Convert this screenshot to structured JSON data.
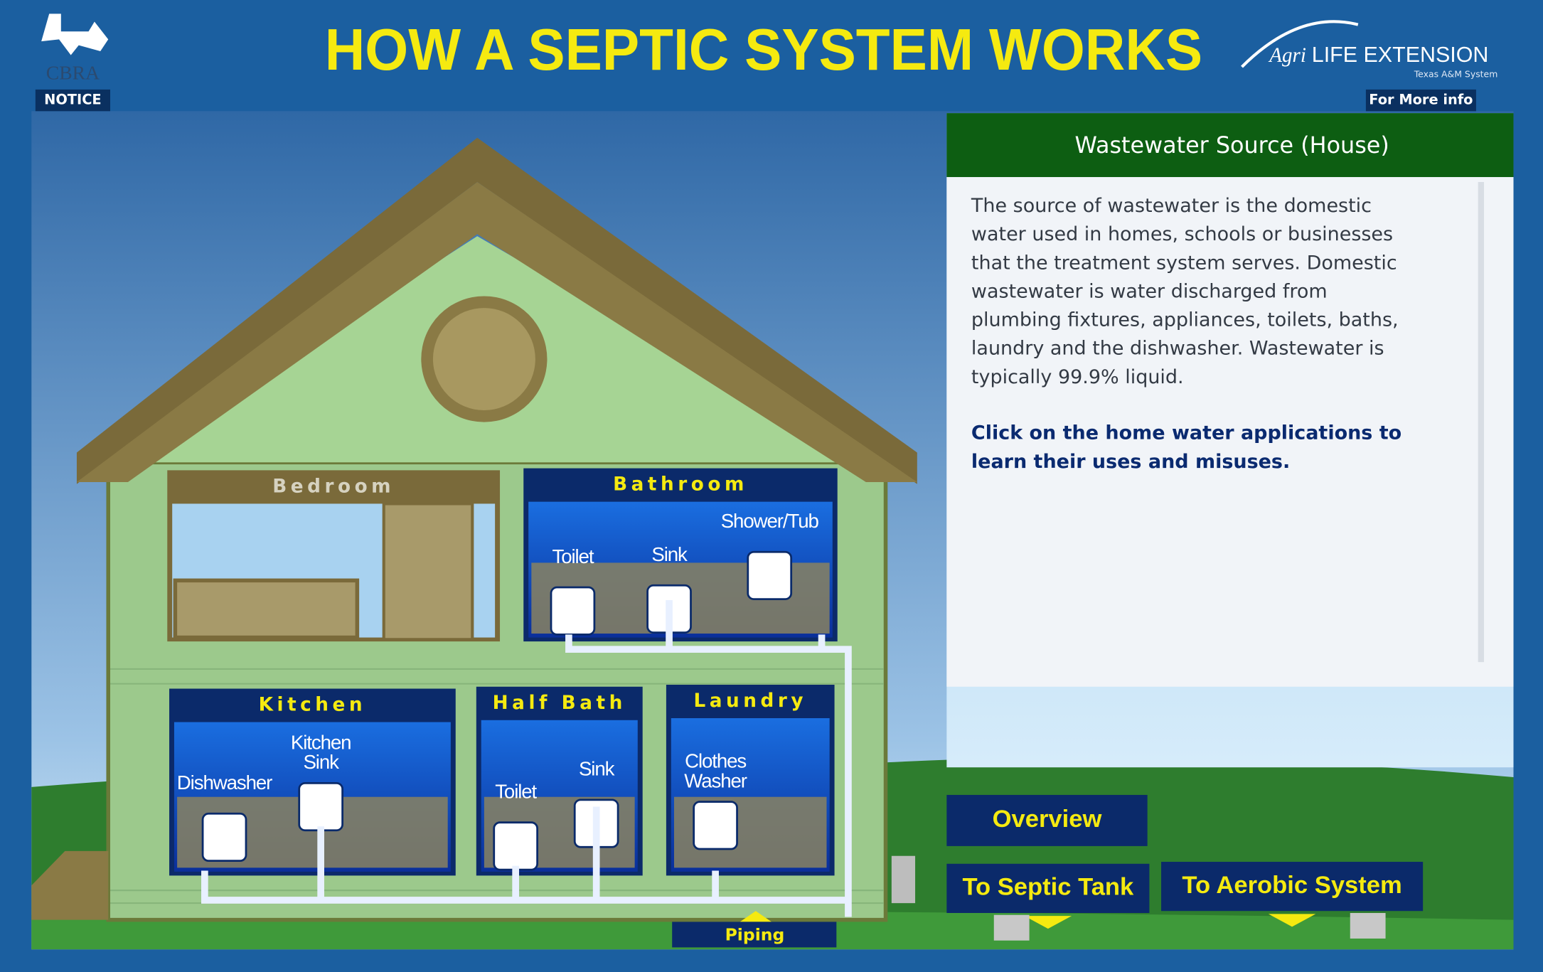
{
  "header": {
    "title": "HOW A SEPTIC SYSTEM WORKS",
    "logo_left": "CBRA",
    "notice": "NOTICE",
    "logo_right_a": "Agri",
    "logo_right_b": "LIFE EXTENSION",
    "logo_right_sub": "Texas A&M System",
    "more_info": "For More info"
  },
  "panel": {
    "title": "Wastewater Source (House)",
    "body_lines": [
      "The source of wastewater is the domestic",
      "water used in homes, schools or businesses",
      "that the treatment system serves.  Domestic",
      "wastewater is water discharged from",
      "plumbing fixtures, appliances, toilets, baths,",
      "laundry and the dishwasher.  Wastewater is",
      "typically 99.9% liquid."
    ],
    "instruction_lines": [
      "Click on the home water applications to",
      "learn their uses and misuses."
    ]
  },
  "rooms": [
    {
      "label": "Bedroom",
      "items": []
    },
    {
      "label": "Bathroom",
      "items": [
        {
          "lines": [
            "Toilet"
          ]
        },
        {
          "lines": [
            "Sink"
          ]
        },
        {
          "lines": [
            "Shower/Tub"
          ]
        }
      ]
    },
    {
      "label": "Kitchen",
      "items": [
        {
          "lines": [
            "Dishwasher"
          ]
        },
        {
          "lines": [
            "Kitchen",
            "Sink"
          ]
        }
      ]
    },
    {
      "label": "Half Bath",
      "items": [
        {
          "lines": [
            "Toilet"
          ]
        },
        {
          "lines": [
            "Sink"
          ]
        }
      ]
    },
    {
      "label": "Laundry",
      "items": [
        {
          "lines": [
            "Clothes",
            "Washer"
          ]
        }
      ]
    }
  ],
  "piping": "Piping",
  "nav": [
    "Overview",
    "To Septic Tank",
    "To Aerobic System"
  ]
}
